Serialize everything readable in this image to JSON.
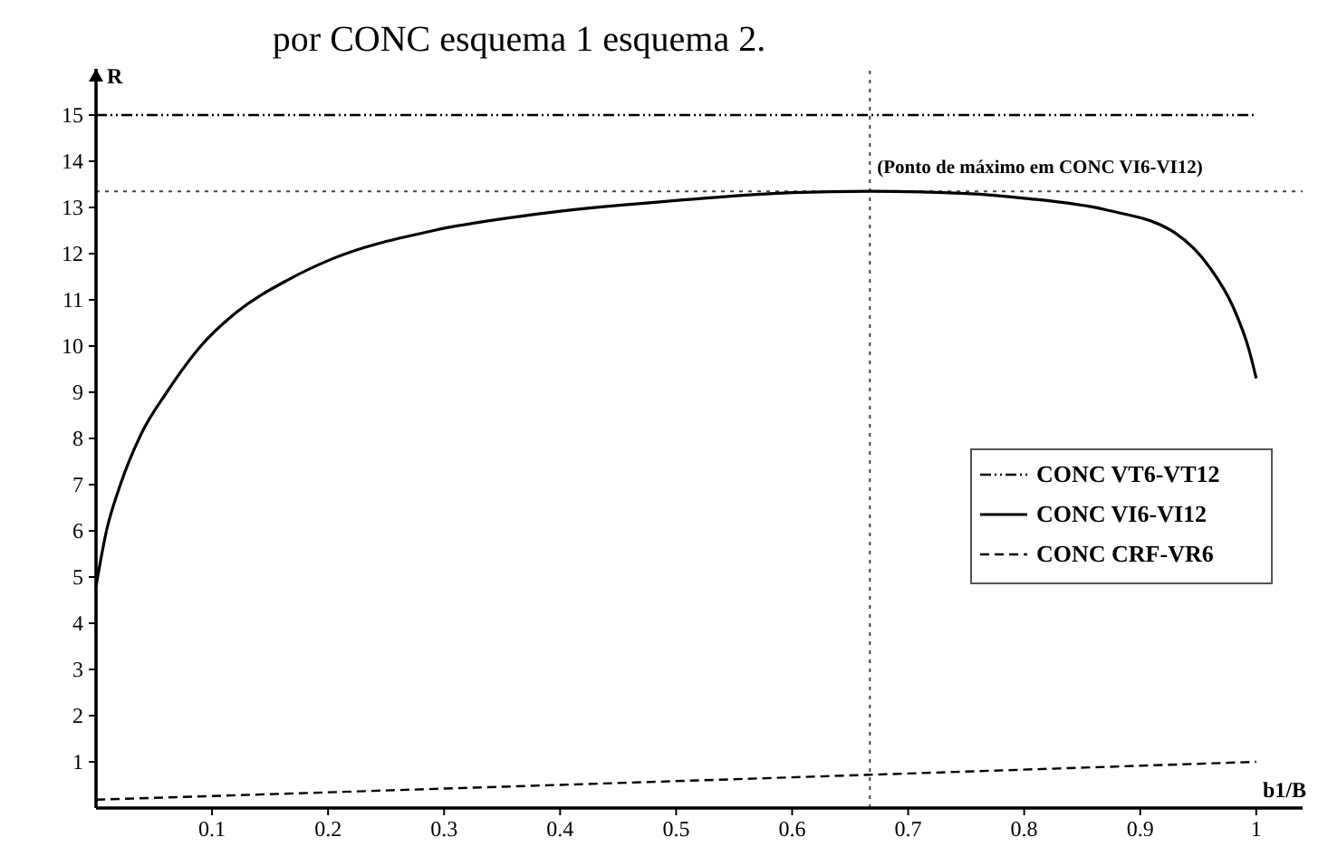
{
  "chart_data": {
    "type": "line",
    "title": "por CONC esquema 1 esquema 2.",
    "xlabel": "b1/B",
    "ylabel": "R",
    "xlim": [
      0,
      1.04
    ],
    "ylim": [
      0,
      16
    ],
    "xticks": [
      0.1,
      0.2,
      0.3,
      0.4,
      0.5,
      0.6,
      0.7,
      0.8,
      0.9,
      1
    ],
    "yticks": [
      1,
      2,
      3,
      4,
      5,
      6,
      7,
      8,
      9,
      10,
      11,
      12,
      13,
      14,
      15
    ],
    "legend": "right",
    "grid": false,
    "marker": "none",
    "series": [
      {
        "name": "CONC VT6-VT12",
        "color": "#000000",
        "line_style": "dashdot",
        "x": [
          0,
          1
        ],
        "values": [
          15,
          15
        ]
      },
      {
        "name": "CONC VI6-VI12",
        "color": "#000000",
        "line_style": "solid",
        "x": [
          0,
          0.009,
          0.021,
          0.039,
          0.061,
          0.091,
          0.121,
          0.166,
          0.201,
          0.291,
          0.381,
          0.5,
          0.6,
          0.667,
          0.75,
          0.8,
          0.87,
          0.93,
          0.96,
          0.98,
          0.994,
          1
        ],
        "values": [
          4.8,
          6.0,
          7.0,
          8.1,
          9.0,
          10.02,
          10.73,
          11.44,
          11.86,
          12.5,
          12.86,
          13.15,
          13.32,
          13.35,
          13.3,
          13.2,
          12.95,
          12.45,
          11.7,
          10.85,
          9.9,
          9.3
        ]
      },
      {
        "name": "CONC CRF-VR6",
        "color": "#000000",
        "line_style": "dashed",
        "x": [
          0,
          0.667,
          1
        ],
        "values": [
          0.18,
          0.72,
          1.0
        ]
      }
    ],
    "ref_lines": [
      {
        "axis": "y",
        "value": 13.35,
        "line_style": "dotted"
      },
      {
        "axis": "x",
        "value": 0.667,
        "line_style": "dotted"
      }
    ],
    "annotations": [
      {
        "text": "(Ponto de máximo em CONC VI6-VI12)",
        "x": 0.667,
        "y": 13.35
      }
    ]
  }
}
